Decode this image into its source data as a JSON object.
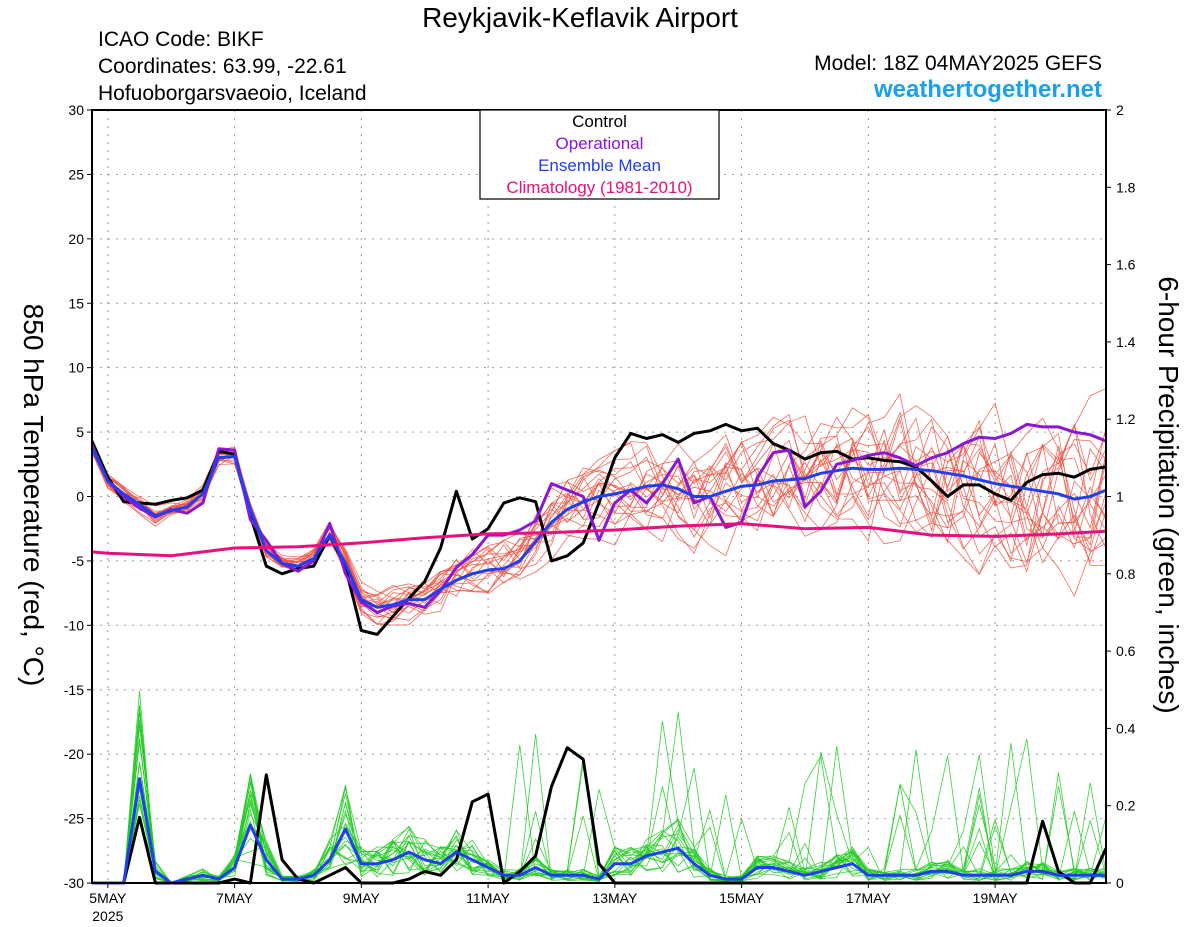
{
  "header": {
    "title": "Reykjavik-Keflavik Airport",
    "icao": "ICAO Code: BIKF",
    "coordinates": "Coordinates: 63.99, -22.61",
    "place": "Hofuoborgarsvaeoio, Iceland",
    "model": "Model: 18Z 04MAY2025 GEFS",
    "site": "weathertogether.net"
  },
  "colors": {
    "control": "#000000",
    "operational": "#8a16d8",
    "ensemble_mean": "#2040f0",
    "climatology": "#e8107e",
    "members_temp": "#f05040",
    "members_precip": "#22cc22",
    "site": "#1aa0ee"
  },
  "chart_data": {
    "type": "line",
    "ylabel": "850 hPa Temperature (red, °C)",
    "ylabel_right": "6-hour Precipitation (green, inches)",
    "ylim": [
      -30,
      30
    ],
    "ylim_right": [
      0,
      2
    ],
    "yticks": [
      30,
      25,
      20,
      15,
      10,
      5,
      0,
      -5,
      -10,
      -15,
      -20,
      -25,
      -30
    ],
    "yticks_right": [
      "2",
      "1.8",
      "1.6",
      "1.4",
      "1.2",
      "1",
      "0.8",
      "0.6",
      "0.4",
      "0.2",
      "0"
    ],
    "xticks": [
      {
        "day": 0,
        "label": "5MAY",
        "sub": "2025"
      },
      {
        "day": 2,
        "label": "7MAY"
      },
      {
        "day": 4,
        "label": "9MAY"
      },
      {
        "day": 6,
        "label": "11MAY"
      },
      {
        "day": 8,
        "label": "13MAY"
      },
      {
        "day": 10,
        "label": "15MAY"
      },
      {
        "day": 12,
        "label": "17MAY"
      },
      {
        "day": 14,
        "label": "19MAY"
      }
    ],
    "xlim_days": [
      -0.25,
      15.75
    ],
    "grid": true,
    "legend": {
      "position": "top-center",
      "entries": [
        {
          "label": "Control",
          "color": "#000000"
        },
        {
          "label": "Operational",
          "color": "#8a16d8"
        },
        {
          "label": "Ensemble Mean",
          "color": "#2040f0"
        },
        {
          "label": "Climatology (1981-2010)",
          "color": "#e8107e"
        }
      ]
    },
    "series_temp": [
      {
        "name": "Control",
        "color": "#000000",
        "width": 3,
        "x": [
          -0.25,
          0,
          0.25,
          0.5,
          0.75,
          1,
          1.25,
          1.5,
          1.75,
          2,
          2.25,
          2.5,
          2.75,
          3,
          3.25,
          3.5,
          3.75,
          4,
          4.25,
          4.5,
          4.75,
          5,
          5.25,
          5.5,
          5.75,
          6,
          6.25,
          6.5,
          6.75,
          7,
          7.25,
          7.5,
          7.75,
          8,
          8.25,
          8.5,
          8.75,
          9,
          9.25,
          9.5,
          9.75,
          10,
          10.25,
          10.5,
          10.75,
          11,
          11.25,
          11.5,
          11.75,
          12,
          12.25,
          12.5,
          12.75,
          13,
          13.25,
          13.5,
          13.75,
          14,
          14.25,
          14.5,
          14.75,
          15,
          15.25,
          15.5,
          15.75
        ],
        "y": [
          4.3,
          1.5,
          -0.4,
          -0.5,
          -0.6,
          -0.3,
          -0.1,
          0.5,
          3.5,
          3.3,
          -1.5,
          -5.4,
          -6.0,
          -5.6,
          -5.4,
          -3.0,
          -5.5,
          -10.4,
          -10.7,
          -9.3,
          -7.9,
          -6.6,
          -4.0,
          0.4,
          -3.3,
          -2.5,
          -0.5,
          -0.1,
          -0.4,
          -5.0,
          -4.6,
          -3.6,
          -0.5,
          3.0,
          4.9,
          4.5,
          4.8,
          4.2,
          4.9,
          5.1,
          5.6,
          5.1,
          5.3,
          4.1,
          3.6,
          2.9,
          3.4,
          3.5,
          2.9,
          3.0,
          2.8,
          2.7,
          2.3,
          1.2,
          0.0,
          0.9,
          0.9,
          0.2,
          -0.3,
          1.1,
          1.7,
          1.8,
          1.5,
          2.1,
          2.3
        ]
      },
      {
        "name": "Operational",
        "color": "#8a16d8",
        "width": 3,
        "x": [
          -0.25,
          0,
          0.25,
          0.5,
          0.75,
          1,
          1.25,
          1.5,
          1.75,
          2,
          2.25,
          2.5,
          2.75,
          3,
          3.25,
          3.5,
          3.75,
          4,
          4.25,
          4.5,
          4.75,
          5,
          5.25,
          5.5,
          5.75,
          6,
          6.25,
          6.5,
          6.75,
          7,
          7.25,
          7.5,
          7.75,
          8,
          8.25,
          8.5,
          8.75,
          9,
          9.25,
          9.5,
          9.75,
          10,
          10.25,
          10.5,
          10.75,
          11,
          11.25,
          11.5,
          11.75,
          12,
          12.25,
          12.5,
          12.75,
          13,
          13.25,
          13.5,
          13.75,
          14,
          14.25,
          14.5,
          14.75,
          15,
          15.25,
          15.5,
          15.75
        ],
        "y": [
          4.0,
          1.2,
          0.0,
          -0.9,
          -1.6,
          -1.0,
          -1.3,
          -0.5,
          3.7,
          3.6,
          -1.8,
          -3.4,
          -5.2,
          -5.8,
          -5.0,
          -2.1,
          -6.0,
          -8.2,
          -9.0,
          -8.5,
          -8.3,
          -8.6,
          -7.3,
          -5.5,
          -4.5,
          -3.0,
          -3.0,
          -2.6,
          -1.9,
          1.0,
          0.5,
          0.0,
          -3.4,
          -0.5,
          0.5,
          -0.5,
          1.0,
          2.9,
          -0.5,
          0.0,
          -2.4,
          -2.0,
          1.5,
          3.4,
          3.6,
          -0.8,
          0.4,
          2.5,
          2.8,
          3.2,
          3.4,
          3.0,
          2.4,
          3.0,
          3.4,
          4.1,
          4.6,
          4.5,
          4.9,
          5.6,
          5.4,
          5.4,
          5.0,
          4.8,
          4.3
        ]
      },
      {
        "name": "Ensemble Mean",
        "color": "#2040f0",
        "width": 3,
        "x": [
          -0.25,
          0,
          0.25,
          0.5,
          0.75,
          1,
          1.25,
          1.5,
          1.75,
          2,
          2.25,
          2.5,
          2.75,
          3,
          3.25,
          3.5,
          3.75,
          4,
          4.25,
          4.5,
          4.75,
          5,
          5.25,
          5.5,
          5.75,
          6,
          6.25,
          6.5,
          6.75,
          7,
          7.25,
          7.5,
          7.75,
          8,
          8.25,
          8.5,
          8.75,
          9,
          9.25,
          9.5,
          9.75,
          10,
          10.25,
          10.5,
          10.75,
          11,
          11.25,
          11.5,
          11.75,
          12,
          12.25,
          12.5,
          12.75,
          13,
          13.25,
          13.5,
          13.75,
          14,
          14.25,
          14.5,
          14.75,
          15,
          15.25,
          15.5,
          15.75
        ],
        "y": [
          3.8,
          1.2,
          0.2,
          -0.6,
          -1.5,
          -1.1,
          -0.8,
          0.2,
          3.0,
          3.1,
          -1.0,
          -4.2,
          -5.2,
          -5.4,
          -4.8,
          -3.0,
          -5.2,
          -8.0,
          -8.6,
          -8.4,
          -8.0,
          -8.0,
          -7.2,
          -6.5,
          -6.0,
          -5.7,
          -5.6,
          -5.0,
          -3.5,
          -2.0,
          -1.0,
          -0.4,
          0.0,
          0.2,
          0.5,
          0.8,
          0.9,
          0.6,
          0.0,
          0.0,
          0.4,
          0.8,
          0.9,
          1.2,
          1.3,
          1.4,
          1.8,
          2.0,
          2.2,
          2.1,
          2.1,
          2.2,
          2.1,
          2.0,
          1.8,
          1.6,
          1.3,
          1.0,
          0.8,
          0.6,
          0.4,
          0.2,
          -0.2,
          0.0,
          0.5
        ]
      },
      {
        "name": "Climatology (1981-2010)",
        "color": "#e8107e",
        "width": 3,
        "x": [
          -0.25,
          0,
          1,
          2,
          3,
          4,
          5,
          6,
          7,
          8,
          9,
          10,
          11,
          12,
          13,
          14,
          15,
          15.75
        ],
        "y": [
          -4.3,
          -4.4,
          -4.6,
          -4.0,
          -3.9,
          -3.6,
          -3.2,
          -2.9,
          -2.8,
          -2.6,
          -2.3,
          -2.1,
          -2.5,
          -2.4,
          -3.0,
          -3.1,
          -2.9,
          -2.7
        ]
      }
    ],
    "series_precip": [
      {
        "name": "Control",
        "color": "#000000",
        "width": 3,
        "x": [
          -0.25,
          0,
          0.25,
          0.5,
          0.75,
          1,
          1.25,
          1.5,
          1.75,
          2,
          2.25,
          2.5,
          2.75,
          3,
          3.25,
          3.5,
          3.75,
          4,
          4.25,
          4.5,
          4.75,
          5,
          5.25,
          5.5,
          5.75,
          6,
          6.25,
          6.5,
          6.75,
          7,
          7.25,
          7.5,
          7.75,
          8,
          8.25,
          8.5,
          8.75,
          9,
          9.25,
          9.5,
          9.75,
          10,
          10.25,
          10.5,
          10.75,
          11,
          11.25,
          11.5,
          11.75,
          12,
          12.25,
          12.5,
          12.75,
          13,
          13.25,
          13.5,
          13.75,
          14,
          14.25,
          14.5,
          14.75,
          15,
          15.25,
          15.5,
          15.75
        ],
        "y": [
          0,
          0,
          0,
          0.17,
          0,
          0,
          0,
          0,
          0,
          0.01,
          0,
          0.28,
          0.06,
          0.01,
          0,
          0.02,
          0.04,
          0,
          0,
          0,
          0.01,
          0.03,
          0.02,
          0.06,
          0.21,
          0.23,
          0,
          0.03,
          0.07,
          0.25,
          0.35,
          0.32,
          0.05,
          0,
          0,
          0,
          0,
          0,
          0,
          0,
          0,
          0,
          0,
          0,
          0,
          0,
          0,
          0,
          0,
          0,
          0,
          0,
          0,
          0,
          0,
          0,
          0,
          0,
          0,
          0,
          0.16,
          0.03,
          0,
          0,
          0.09
        ]
      },
      {
        "name": "Ensemble Mean",
        "color": "#2040f0",
        "width": 3,
        "x": [
          -0.25,
          0,
          0.25,
          0.5,
          0.75,
          1,
          1.25,
          1.5,
          1.75,
          2,
          2.25,
          2.5,
          2.75,
          3,
          3.25,
          3.5,
          3.75,
          4,
          4.25,
          4.5,
          4.75,
          5,
          5.25,
          5.5,
          5.75,
          6,
          6.25,
          6.5,
          6.75,
          7,
          7.25,
          7.5,
          7.75,
          8,
          8.25,
          8.5,
          8.75,
          9,
          9.25,
          9.5,
          9.75,
          10,
          10.25,
          10.5,
          10.75,
          11,
          11.25,
          11.5,
          11.75,
          12,
          12.25,
          12.5,
          12.75,
          13,
          13.25,
          13.5,
          13.75,
          14,
          14.25,
          14.5,
          14.75,
          15,
          15.25,
          15.5,
          15.75
        ],
        "y": [
          0,
          0,
          0,
          0.27,
          0.03,
          0,
          0.01,
          0.02,
          0.01,
          0.04,
          0.15,
          0.06,
          0.01,
          0.01,
          0.02,
          0.06,
          0.14,
          0.05,
          0.05,
          0.06,
          0.08,
          0.06,
          0.05,
          0.08,
          0.06,
          0.04,
          0.02,
          0.02,
          0.04,
          0.02,
          0.02,
          0.02,
          0.01,
          0.05,
          0.05,
          0.07,
          0.08,
          0.09,
          0.05,
          0.02,
          0.01,
          0.01,
          0.04,
          0.04,
          0.03,
          0.02,
          0.03,
          0.04,
          0.05,
          0.02,
          0.02,
          0.02,
          0.02,
          0.03,
          0.03,
          0.02,
          0.02,
          0.02,
          0.02,
          0.03,
          0.03,
          0.02,
          0.02,
          0.02,
          0.02
        ]
      }
    ]
  }
}
